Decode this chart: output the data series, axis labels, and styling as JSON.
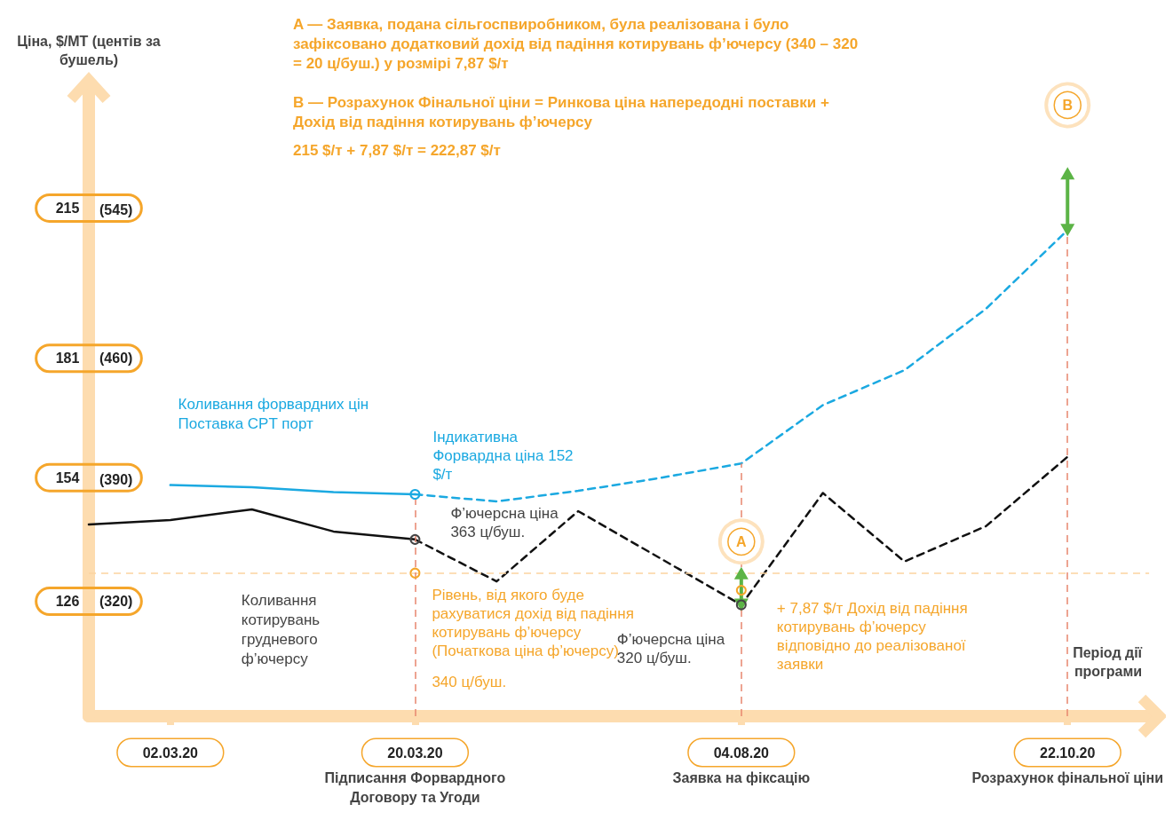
{
  "chart_data": {
    "type": "line",
    "ylabel": "Ціна, $/МТ (центів за бушель)",
    "xlabel": "Період дії програми",
    "categories": [
      null,
      "02.03.20",
      null,
      null,
      "20.03.20\nПідписання Форвардного\nДоговору та Угоди",
      null,
      null,
      null,
      "04.08.20\nЗаявка на фіксацію",
      null,
      null,
      null,
      "22.10.20\nРозрахунок фінальної ціни",
      null
    ],
    "ylim": [
      100,
      242
    ],
    "yticks": [
      126,
      154,
      181,
      215
    ],
    "y2lim": [
      254,
      614.7
    ],
    "y2ticks": [
      {
        "value": 320,
        "label": "(320)"
      },
      {
        "value": 390,
        "label": "(390)"
      },
      {
        "value": 460,
        "label": "(460)"
      },
      {
        "value": 545,
        "label": "(545)"
      }
    ],
    "marker": "none",
    "series": [
      {
        "color": "#111111",
        "line_style": "solid",
        "values": [
          143.4,
          144.4,
          146.8,
          141.8,
          140.0,
          null,
          null,
          null,
          null,
          null,
          null,
          null,
          null,
          null
        ]
      },
      {
        "color": "#111111",
        "line_style": "dashed",
        "values": [
          null,
          null,
          null,
          null,
          140.0,
          130.5,
          146.4,
          135.8,
          125.2,
          150.5,
          135.0,
          143.0,
          158.7,
          null
        ]
      },
      {
        "color": "#1ba9e1",
        "line_style": "solid",
        "values": [
          null,
          152.3,
          151.8,
          150.7,
          150.2,
          null,
          null,
          null,
          null,
          null,
          null,
          null,
          null,
          null
        ]
      },
      {
        "color": "#1ba9e1",
        "line_style": "dashed",
        "values": [
          null,
          null,
          null,
          null,
          150.2,
          148.6,
          151.0,
          153.9,
          157.2,
          170.4,
          178.3,
          192.2,
          210.0,
          null
        ]
      },
      {
        "color": "#5cb446",
        "line_style": "solid",
        "marker": "triangle",
        "x": [
          "04.08.20\nЗаявка на фіксацію",
          "04.08.20\nЗаявка на фіксацію"
        ],
        "values": [
          125.2,
          132.4
        ]
      },
      {
        "color": "#5cb446",
        "line_style": "solid",
        "marker": "triangle",
        "x": [
          "22.10.20\nРозрахунок фінальної ціни",
          "22.10.20\nРозрахунок фінальної ціни"
        ],
        "values": [
          210.0,
          222.87
        ]
      }
    ],
    "ref_lines": [
      {
        "axis": "y",
        "value": 132.4,
        "label": null,
        "color": "#fbd3a0",
        "line_style": "dashed"
      },
      {
        "axis": "x",
        "value": "20.03.20\nПідписання Форвардного\nДоговору та Угоди",
        "label": null,
        "color": "#e8876f",
        "line_style": "dashed"
      },
      {
        "axis": "x",
        "value": "04.08.20\nЗаявка на фіксацію",
        "label": null,
        "color": "#e8876f",
        "line_style": "dashed"
      },
      {
        "axis": "x",
        "value": "22.10.20\nРозрахунок фінальної ціни",
        "label": null,
        "color": "#e8876f",
        "line_style": "dashed"
      }
    ],
    "annotations": [
      "A — Заявка, подана сільгоспвиробником, була реалізована і було зафіксовано додатковий дохід від падіння котирувань ф’ючерсу (340 – 320 = 20 ц/буш.) у розмірі 7,87 $/т",
      "B — Розрахунок Фінальної ціни = Ринкова ціна напередодні поставки + Дохід від падіння котирувань ф’ючерсу",
      "215 $/т + 7,87 $/т = 222,87 $/т",
      "Коливання форвардних цін Поставка CPT порт",
      {
        "text": "Індикативна Форвардна ціна 152 $/т",
        "x": "20.03.20\nПідписання Форвардного\nДоговору та Угоди",
        "y": 150.2
      },
      {
        "text": "Ф’ючерсна ціна 363 ц/буш.",
        "x": "20.03.20\nПідписання Форвардного\nДоговору та Угоди",
        "y": 140.0
      },
      "Коливання котирувань грудневого ф’ючерсу",
      {
        "text": "Рівень, від якого буде рахуватися дохід від падіння котирувань ф’ючерсу (Початкова ціна ф’ючерсу)",
        "x": "20.03.20\nПідписання Форвардного\nДоговору та Угоди",
        "y": 132.4
      },
      "340 ц/буш.",
      {
        "text": "Ф’ючерсна ціна 320 ц/буш.",
        "x": "04.08.20\nЗаявка на фіксацію",
        "y": 125.2
      },
      {
        "text": "+ 7,87 $/т Дохід від падіння котирувань ф’ючерсу відповідно до реалізованої заявки",
        "x": "04.08.20\nЗаявка на фіксацію",
        "y": 128.5
      },
      {
        "text": "A",
        "x": "04.08.20\nЗаявка на фіксацію",
        "y": 139.5
      },
      {
        "text": "B",
        "x": "22.10.20\nРозрахунок фінальної ціни",
        "y": 238.3
      }
    ]
  }
}
